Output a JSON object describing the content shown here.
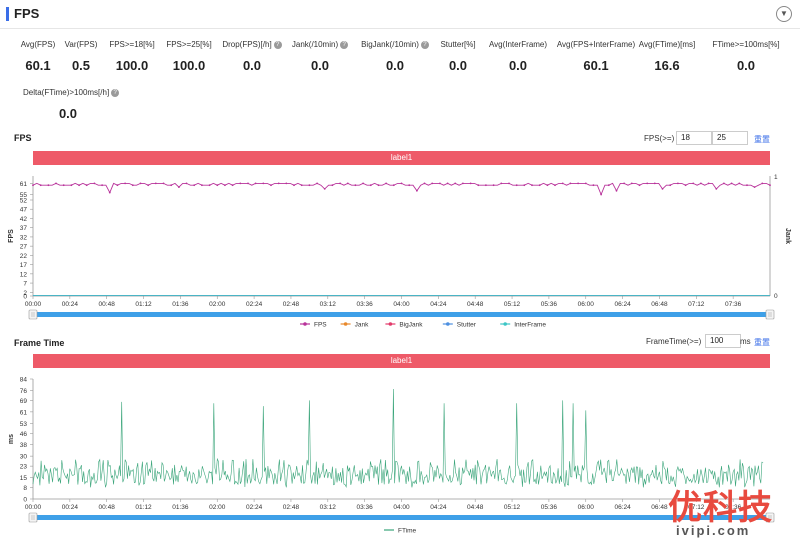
{
  "header": {
    "title": "FPS",
    "collapse_icon": "chevron-down-icon"
  },
  "metrics": [
    {
      "label": "Avg(FPS)",
      "value": "60.1",
      "help": false
    },
    {
      "label": "Var(FPS)",
      "value": "0.5",
      "help": false
    },
    {
      "label": "FPS>=18[%]",
      "value": "100.0",
      "help": false
    },
    {
      "label": "FPS>=25[%]",
      "value": "100.0",
      "help": false
    },
    {
      "label": "Drop(FPS)[/h]",
      "value": "0.0",
      "help": true
    },
    {
      "label": "Jank(/10min)",
      "value": "0.0",
      "help": true
    },
    {
      "label": "BigJank(/10min)",
      "value": "0.0",
      "help": true
    },
    {
      "label": "Stutter[%]",
      "value": "0.0",
      "help": false
    },
    {
      "label": "Avg(InterFrame)",
      "value": "0.0",
      "help": false
    },
    {
      "label": "Avg(FPS+InterFrame)",
      "value": "60.1",
      "help": false
    },
    {
      "label": "Avg(FTime)[ms]",
      "value": "16.6",
      "help": false
    },
    {
      "label": "FTime>=100ms[%]",
      "value": "0.0",
      "help": false
    },
    {
      "label": "Delta(FTime)>100ms[/h]",
      "value": "0.0",
      "help": true
    }
  ],
  "fps_section": {
    "title": "FPS",
    "threshold_label": "FPS(>=)",
    "threshold_values": [
      "18",
      "25"
    ],
    "reset_label": "重置",
    "label_bar": "label1",
    "left_axis_title": "FPS",
    "right_axis_title": "Jank",
    "right_axis_ticks": [
      "1",
      "0"
    ],
    "legend": [
      {
        "name": "FPS",
        "color": "#b8329a"
      },
      {
        "name": "Jank",
        "color": "#e8892c"
      },
      {
        "name": "BigJank",
        "color": "#e23b6b"
      },
      {
        "name": "Stutter",
        "color": "#4c8fe0"
      },
      {
        "name": "InterFrame",
        "color": "#3cc6c6"
      }
    ]
  },
  "ftime_section": {
    "title": "Frame Time",
    "threshold_label": "FrameTime(>=)",
    "threshold_value": "100",
    "unit": "ms",
    "reset_label": "重置",
    "label_bar": "label1",
    "axis_title": "ms",
    "legend": [
      {
        "name": "FTime",
        "color": "#3aa57a"
      }
    ]
  },
  "chart_data": [
    {
      "type": "line",
      "title": "FPS",
      "ylabel": "FPS",
      "ylim": [
        0,
        65
      ],
      "y_ticks": [
        0,
        2,
        7,
        12,
        17,
        22,
        27,
        32,
        37,
        42,
        47,
        52,
        55,
        61
      ],
      "x_ticks": [
        "00:00",
        "00:24",
        "00:48",
        "01:12",
        "01:36",
        "02:00",
        "02:24",
        "02:48",
        "03:12",
        "03:36",
        "04:00",
        "04:24",
        "04:48",
        "05:12",
        "05:36",
        "06:00",
        "06:24",
        "06:48",
        "07:12",
        "07:36"
      ],
      "xlim_seconds": [
        0,
        480
      ],
      "series": [
        {
          "name": "FPS",
          "color": "#b8329a",
          "baseline": 60,
          "dips": [
            [
              50,
              56
            ],
            [
              95,
              59
            ],
            [
              190,
              58
            ],
            [
              250,
              57
            ],
            [
              370,
              55
            ],
            [
              380,
              57
            ],
            [
              410,
              58
            ],
            [
              445,
              58
            ],
            [
              470,
              59
            ]
          ]
        },
        {
          "name": "Jank",
          "color": "#e8892c",
          "constant": 0
        },
        {
          "name": "BigJank",
          "color": "#e23b6b",
          "constant": 0
        },
        {
          "name": "Stutter",
          "color": "#4c8fe0",
          "constant": 0
        },
        {
          "name": "InterFrame",
          "color": "#3cc6c6",
          "constant": 0
        }
      ]
    },
    {
      "type": "line",
      "title": "Frame Time",
      "ylabel": "ms",
      "ylim": [
        0,
        84
      ],
      "y_ticks": [
        0,
        8,
        15,
        23,
        30,
        38,
        46,
        53,
        61,
        69,
        76,
        84
      ],
      "x_ticks": [
        "00:00",
        "00:24",
        "00:48",
        "01:12",
        "01:36",
        "02:00",
        "02:24",
        "02:48",
        "03:12",
        "03:36",
        "04:00",
        "04:24",
        "04:48",
        "05:12",
        "05:36",
        "06:00",
        "06:24",
        "06:48",
        "07:12",
        "07:36"
      ],
      "xlim_seconds": [
        0,
        480
      ],
      "series": [
        {
          "name": "FTime",
          "color": "#3aa57a",
          "low": 8,
          "high": 28,
          "spikes": [
            [
              58,
              68
            ],
            [
              118,
              67
            ],
            [
              150,
              65
            ],
            [
              180,
              69
            ],
            [
              235,
              77
            ],
            [
              268,
              67
            ],
            [
              315,
              67
            ],
            [
              345,
              69
            ],
            [
              352,
              67
            ],
            [
              360,
              62
            ]
          ]
        }
      ]
    }
  ]
}
